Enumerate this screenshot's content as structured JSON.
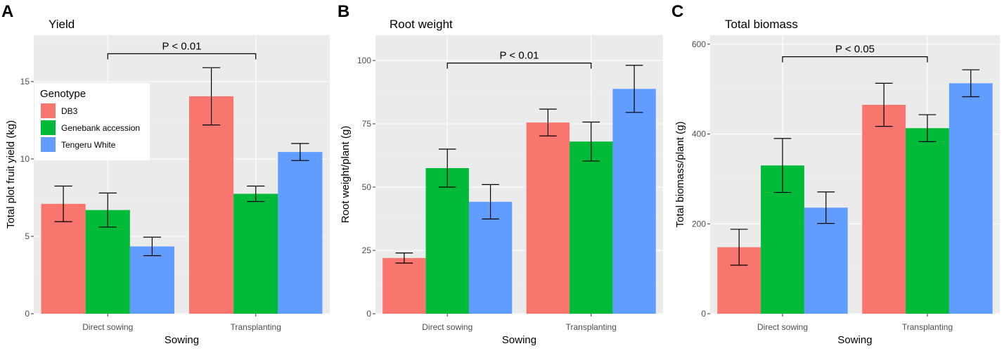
{
  "chart_data": [
    {
      "type": "bar",
      "panel_letter": "A",
      "title": "Yield",
      "xlabel": "Sowing",
      "ylabel": "Total plot fruit yield (kg)",
      "categories": [
        "Direct sowing",
        "Transplanting"
      ],
      "ylim": [
        0,
        18
      ],
      "yticks": [
        0,
        5,
        10,
        15
      ],
      "series": [
        {
          "name": "DB3",
          "color": "#F8766D",
          "values": [
            7.1,
            14.05
          ],
          "error": [
            1.15,
            1.85
          ]
        },
        {
          "name": "Genebank accession",
          "color": "#00BA38",
          "values": [
            6.7,
            7.75
          ],
          "error": [
            1.1,
            0.5
          ]
        },
        {
          "name": "Tengeru White",
          "color": "#619CFF",
          "values": [
            4.35,
            10.45
          ],
          "error": [
            0.6,
            0.55
          ]
        }
      ],
      "significance": {
        "label": "P < 0.01",
        "from": "Genebank accession|Direct sowing",
        "to": "Genebank accession|Transplanting",
        "y": 16.8
      },
      "legend": {
        "title": "Genotype",
        "position": "top-left"
      }
    },
    {
      "type": "bar",
      "panel_letter": "B",
      "title": "Root weight",
      "xlabel": "Sowing",
      "ylabel": "Root weight/plant (g)",
      "categories": [
        "Direct sowing",
        "Transplanting"
      ],
      "ylim": [
        0,
        110
      ],
      "yticks": [
        0,
        25,
        50,
        75,
        100
      ],
      "series": [
        {
          "name": "DB3",
          "color": "#F8766D",
          "values": [
            22,
            75.5
          ],
          "error": [
            2,
            5.3
          ]
        },
        {
          "name": "Genebank accession",
          "color": "#00BA38",
          "values": [
            57.5,
            68
          ],
          "error": [
            7.5,
            7.7
          ]
        },
        {
          "name": "Tengeru White",
          "color": "#619CFF",
          "values": [
            44.2,
            88.8
          ],
          "error": [
            6.8,
            9.3
          ]
        }
      ],
      "significance": {
        "label": "P < 0.01",
        "from": "Genebank accession|Direct sowing",
        "to": "Genebank accession|Transplanting",
        "y": 99
      }
    },
    {
      "type": "bar",
      "panel_letter": "C",
      "title": "Total biomass",
      "xlabel": "Sowing",
      "ylabel": "Total biomass/plant (g)",
      "categories": [
        "Direct sowing",
        "Transplanting"
      ],
      "ylim": [
        0,
        620
      ],
      "yticks": [
        0,
        200,
        400,
        600
      ],
      "series": [
        {
          "name": "DB3",
          "color": "#F8766D",
          "values": [
            148,
            465
          ],
          "error": [
            40,
            48
          ]
        },
        {
          "name": "Genebank accession",
          "color": "#00BA38",
          "values": [
            330,
            413
          ],
          "error": [
            60,
            30
          ]
        },
        {
          "name": "Tengeru White",
          "color": "#619CFF",
          "values": [
            236,
            513
          ],
          "error": [
            35,
            30
          ]
        }
      ],
      "significance": {
        "label": "P < 0.05",
        "from": "Genebank accession|Direct sowing",
        "to": "Genebank accession|Transplanting",
        "y": 572
      }
    }
  ]
}
